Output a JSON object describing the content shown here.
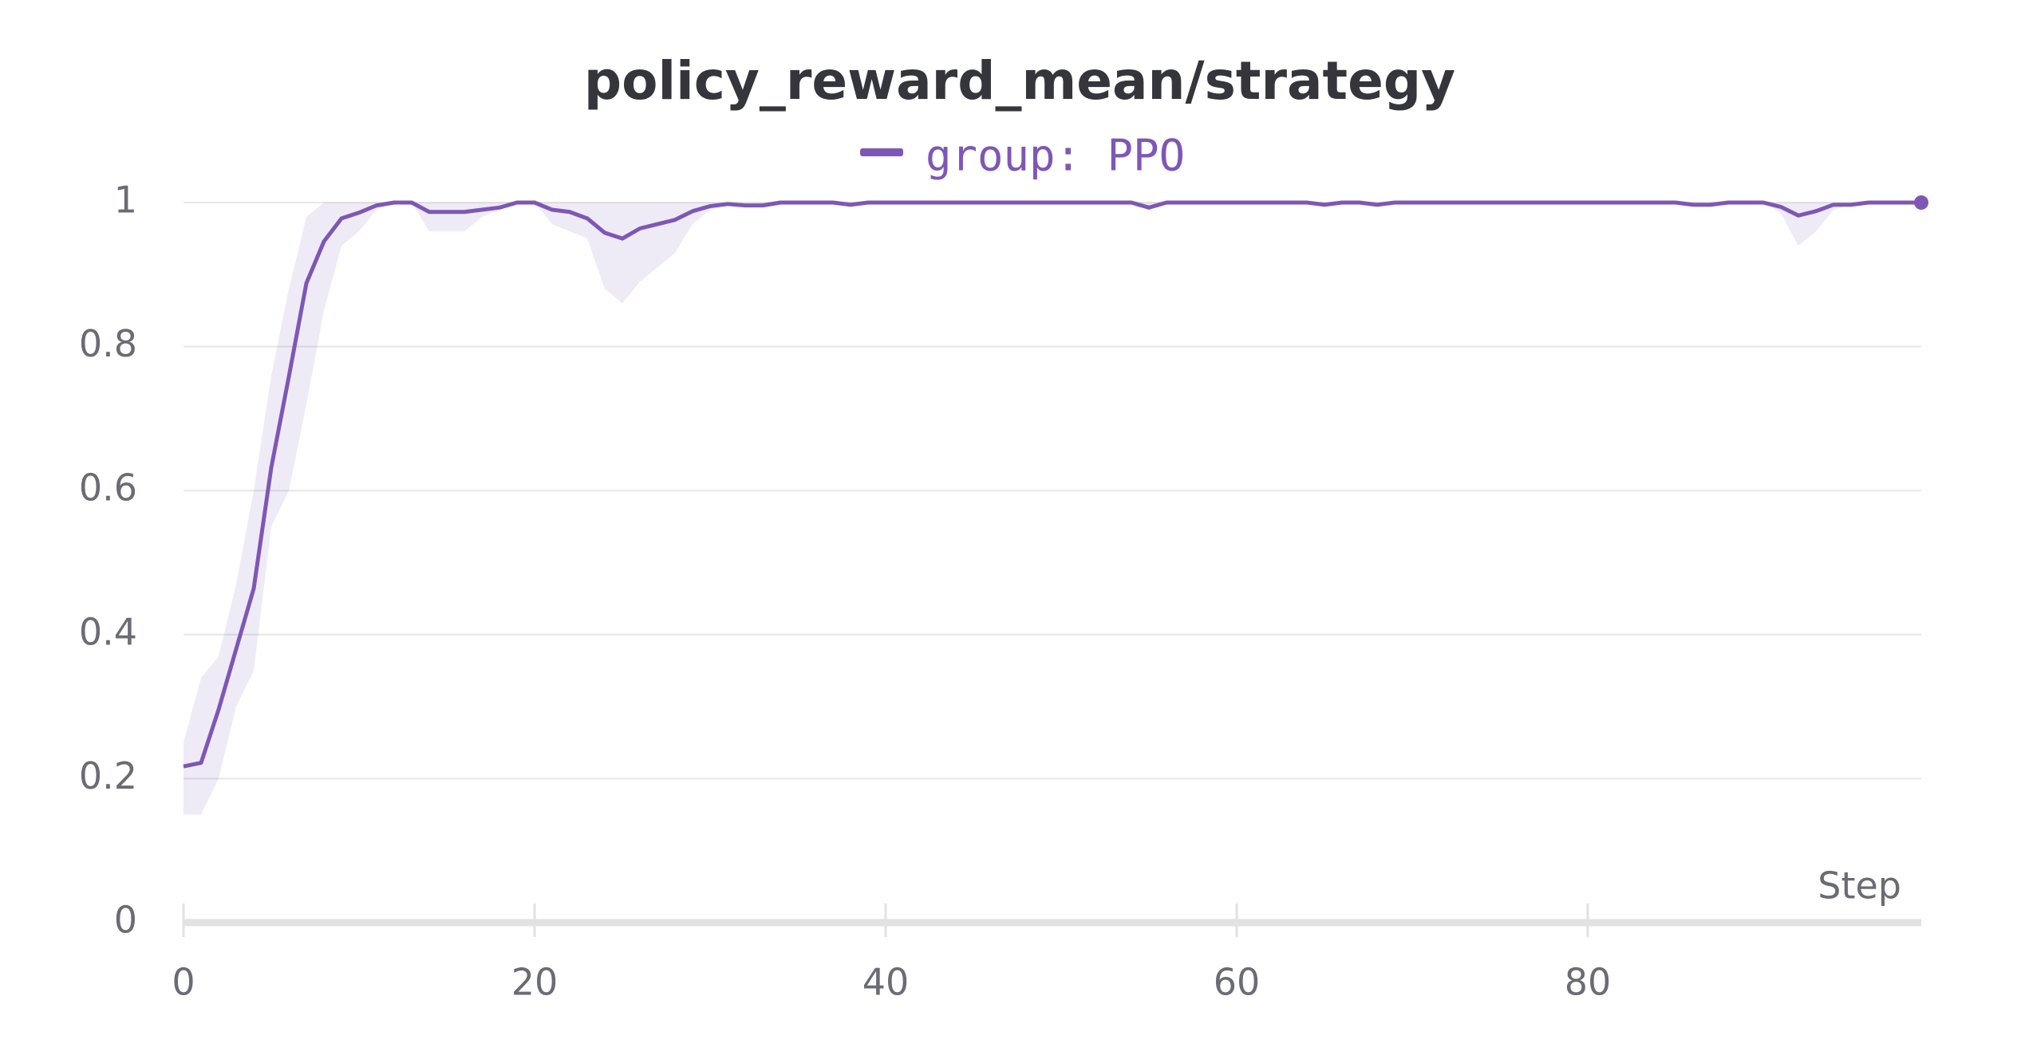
{
  "chart_data": {
    "type": "line",
    "title": "policy_reward_mean/strategy",
    "xlabel": "Step",
    "x": [
      0,
      1,
      2,
      3,
      4,
      5,
      6,
      7,
      8,
      9,
      10,
      11,
      12,
      13,
      14,
      15,
      16,
      17,
      18,
      19,
      20,
      21,
      22,
      23,
      24,
      25,
      26,
      27,
      28,
      29,
      30,
      31,
      32,
      33,
      34,
      35,
      36,
      37,
      38,
      39,
      40,
      41,
      42,
      43,
      44,
      45,
      46,
      47,
      48,
      49,
      50,
      51,
      52,
      53,
      54,
      55,
      56,
      57,
      58,
      59,
      60,
      61,
      62,
      63,
      64,
      65,
      66,
      67,
      68,
      69,
      70,
      71,
      72,
      73,
      74,
      75,
      76,
      77,
      78,
      79,
      80,
      81,
      82,
      83,
      84,
      85,
      86,
      87,
      88,
      89,
      90,
      91,
      92,
      93,
      94,
      95,
      96,
      97,
      98,
      99
    ],
    "series": [
      {
        "name": "group: PPO",
        "color": "#7e57b6",
        "values": [
          0.217,
          0.222,
          0.296,
          0.38,
          0.464,
          0.632,
          0.758,
          0.888,
          0.946,
          0.978,
          0.986,
          0.996,
          1,
          1,
          0.987,
          0.987,
          0.987,
          0.99,
          0.993,
          1,
          1,
          0.99,
          0.987,
          0.978,
          0.958,
          0.95,
          0.964,
          0.97,
          0.976,
          0.988,
          0.995,
          0.998,
          0.996,
          0.996,
          1,
          1,
          1,
          1,
          0.997,
          1,
          1,
          1,
          1,
          1,
          1,
          1,
          1,
          1,
          1,
          1,
          1,
          1,
          1,
          1,
          1,
          0.993,
          1,
          1,
          1,
          1,
          1,
          1,
          1,
          1,
          1,
          0.997,
          1,
          1,
          0.997,
          1,
          1,
          1,
          1,
          1,
          1,
          1,
          1,
          1,
          1,
          1,
          1,
          1,
          1,
          1,
          1,
          1,
          0.997,
          0.997,
          1,
          1,
          1,
          0.994,
          0.982,
          0.988,
          0.997,
          0.997,
          1,
          1,
          1,
          1
        ]
      }
    ],
    "band": {
      "color": "#7e57b6",
      "lower": [
        0.15,
        0.15,
        0.2,
        0.3,
        0.35,
        0.55,
        0.6,
        0.72,
        0.85,
        0.94,
        0.96,
        0.99,
        1,
        1,
        0.96,
        0.96,
        0.96,
        0.98,
        0.99,
        1,
        1,
        0.97,
        0.96,
        0.95,
        0.88,
        0.86,
        0.89,
        0.91,
        0.93,
        0.97,
        0.99,
        0.995,
        0.996,
        0.996,
        1,
        1,
        1,
        1,
        0.997,
        1,
        1,
        1,
        1,
        1,
        1,
        1,
        1,
        1,
        1,
        1,
        1,
        1,
        1,
        1,
        1,
        0.993,
        1,
        1,
        1,
        1,
        1,
        1,
        1,
        1,
        1,
        0.997,
        1,
        1,
        0.997,
        1,
        1,
        1,
        1,
        1,
        1,
        1,
        1,
        1,
        1,
        1,
        1,
        1,
        1,
        1,
        1,
        1,
        0.997,
        0.997,
        1,
        1,
        1,
        0.985,
        0.94,
        0.96,
        0.99,
        0.997,
        1,
        1,
        1,
        1
      ],
      "upper": [
        0.25,
        0.34,
        0.37,
        0.47,
        0.6,
        0.76,
        0.88,
        0.98,
        1,
        1,
        1,
        1,
        1,
        1,
        1,
        1,
        1,
        1,
        1,
        1,
        1,
        1,
        1,
        1,
        1,
        1,
        1,
        1,
        1,
        1,
        1,
        1,
        1,
        1,
        1,
        1,
        1,
        1,
        1,
        1,
        1,
        1,
        1,
        1,
        1,
        1,
        1,
        1,
        1,
        1,
        1,
        1,
        1,
        1,
        1,
        1,
        1,
        1,
        1,
        1,
        1,
        1,
        1,
        1,
        1,
        1,
        1,
        1,
        1,
        1,
        1,
        1,
        1,
        1,
        1,
        1,
        1,
        1,
        1,
        1,
        1,
        1,
        1,
        1,
        1,
        1,
        1,
        1,
        1,
        1,
        1,
        1,
        1,
        1,
        1,
        1,
        1,
        1,
        1,
        1
      ]
    },
    "xlim": [
      0,
      99
    ],
    "xticks": [
      0,
      20,
      40,
      60,
      80
    ],
    "ylim": [
      0,
      1
    ],
    "yticks": [
      0,
      0.2,
      0.4,
      0.6,
      0.8,
      1
    ],
    "grid": true
  }
}
